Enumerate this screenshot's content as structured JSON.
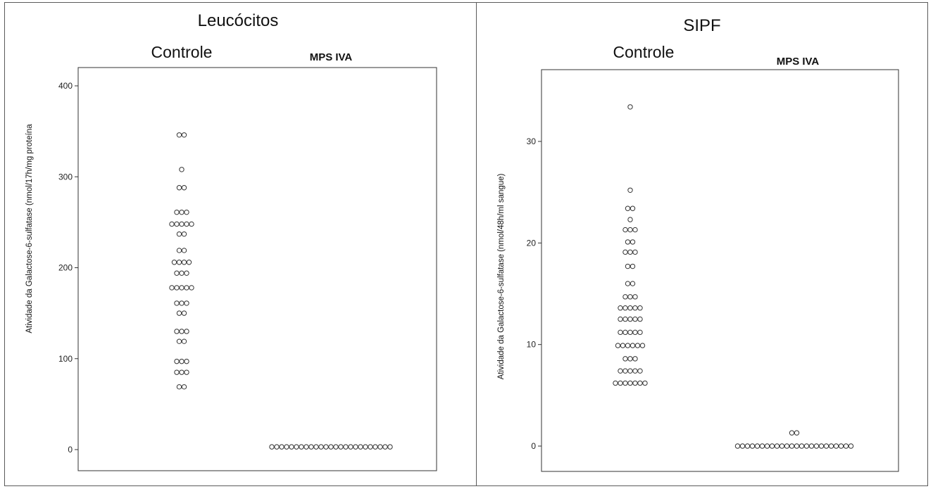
{
  "chart_data": [
    {
      "type": "scatter",
      "title": "Leucócitos",
      "ylabel": "Atividade da Galactose-6-sulfatase (nmol/17h/mg proteína",
      "ylim": [
        0,
        410
      ],
      "yticks": [
        0,
        100,
        200,
        300,
        400
      ],
      "grid": false,
      "groups": [
        {
          "name": "Controle",
          "points": [
            {
              "y": 346,
              "count": 2
            },
            {
              "y": 308,
              "count": 1
            },
            {
              "y": 288,
              "count": 2
            },
            {
              "y": 261,
              "count": 3
            },
            {
              "y": 248,
              "count": 5
            },
            {
              "y": 237,
              "count": 2
            },
            {
              "y": 219,
              "count": 2
            },
            {
              "y": 206,
              "count": 4
            },
            {
              "y": 194,
              "count": 3
            },
            {
              "y": 178,
              "count": 5
            },
            {
              "y": 161,
              "count": 3
            },
            {
              "y": 150,
              "count": 2
            },
            {
              "y": 130,
              "count": 3
            },
            {
              "y": 119,
              "count": 2
            },
            {
              "y": 97,
              "count": 3
            },
            {
              "y": 85,
              "count": 3
            },
            {
              "y": 69,
              "count": 2
            }
          ]
        },
        {
          "name": "MPS IVA",
          "points": [
            {
              "y": 3,
              "count": 25
            }
          ]
        }
      ]
    },
    {
      "type": "scatter",
      "title": "SIPF",
      "ylabel": "Atividade da Galactose-6-sulfatase (nmol/48h/ml sangue)",
      "ylim": [
        -1,
        36
      ],
      "yticks": [
        0,
        10,
        20,
        30
      ],
      "grid": false,
      "groups": [
        {
          "name": "Controle",
          "points": [
            {
              "y": 33.4,
              "count": 1
            },
            {
              "y": 25.2,
              "count": 1
            },
            {
              "y": 23.4,
              "count": 2
            },
            {
              "y": 22.3,
              "count": 1
            },
            {
              "y": 21.3,
              "count": 3
            },
            {
              "y": 20.1,
              "count": 2
            },
            {
              "y": 19.1,
              "count": 3
            },
            {
              "y": 17.7,
              "count": 2
            },
            {
              "y": 16.0,
              "count": 2
            },
            {
              "y": 14.7,
              "count": 3
            },
            {
              "y": 13.6,
              "count": 5
            },
            {
              "y": 12.5,
              "count": 5
            },
            {
              "y": 11.2,
              "count": 5
            },
            {
              "y": 9.9,
              "count": 6
            },
            {
              "y": 8.6,
              "count": 3
            },
            {
              "y": 7.4,
              "count": 5
            },
            {
              "y": 6.2,
              "count": 7
            }
          ]
        },
        {
          "name": "MPS IVA",
          "points": [
            {
              "y": 1.3,
              "count": 2
            },
            {
              "y": 0.0,
              "count": 24
            }
          ]
        }
      ]
    }
  ]
}
